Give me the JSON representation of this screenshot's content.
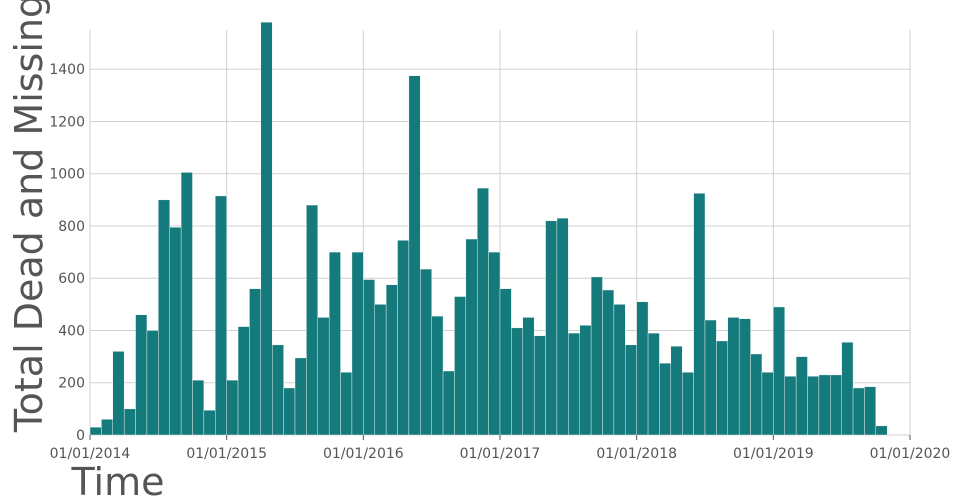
{
  "chart_data": {
    "type": "bar",
    "xlabel": "Time",
    "ylabel": "Total Dead and Missing",
    "ylim": [
      0,
      1550
    ],
    "y_ticks": [
      {
        "value": 0,
        "label": "0"
      },
      {
        "value": 200,
        "label": "200"
      },
      {
        "value": 400,
        "label": "400"
      },
      {
        "value": 600,
        "label": "600"
      },
      {
        "value": 800,
        "label": "800"
      },
      {
        "value": 1000,
        "label": "1000"
      },
      {
        "value": 1200,
        "label": "1200"
      },
      {
        "value": 1400,
        "label": "1400"
      }
    ],
    "x_ticks": [
      {
        "date": "2014-01-01",
        "label": "01/01/2014"
      },
      {
        "date": "2015-01-01",
        "label": "01/01/2015"
      },
      {
        "date": "2016-01-01",
        "label": "01/01/2016"
      },
      {
        "date": "2017-01-01",
        "label": "01/01/2017"
      },
      {
        "date": "2018-01-01",
        "label": "01/01/2018"
      },
      {
        "date": "2019-01-01",
        "label": "01/01/2019"
      },
      {
        "date": "2020-01-01",
        "label": "01/01/2020"
      }
    ],
    "bar_color": "#157a7c",
    "grid": true,
    "legend": "none",
    "x": [
      "2014-01",
      "2014-02",
      "2014-03",
      "2014-04",
      "2014-05",
      "2014-06",
      "2014-07",
      "2014-08",
      "2014-09",
      "2014-10",
      "2014-11",
      "2014-12",
      "2015-01",
      "2015-02",
      "2015-03",
      "2015-04",
      "2015-05",
      "2015-06",
      "2015-07",
      "2015-08",
      "2015-09",
      "2015-10",
      "2015-11",
      "2015-12",
      "2016-01",
      "2016-02",
      "2016-03",
      "2016-04",
      "2016-05",
      "2016-06",
      "2016-07",
      "2016-08",
      "2016-09",
      "2016-10",
      "2016-11",
      "2016-12",
      "2017-01",
      "2017-02",
      "2017-03",
      "2017-04",
      "2017-05",
      "2017-06",
      "2017-07",
      "2017-08",
      "2017-09",
      "2017-10",
      "2017-11",
      "2017-12",
      "2018-01",
      "2018-02",
      "2018-03",
      "2018-04",
      "2018-05",
      "2018-06",
      "2018-07",
      "2018-08",
      "2018-09",
      "2018-10",
      "2018-11",
      "2018-12",
      "2019-01",
      "2019-02",
      "2019-03",
      "2019-04",
      "2019-05",
      "2019-06",
      "2019-07",
      "2019-08",
      "2019-09",
      "2019-10",
      "2019-11",
      "2019-12"
    ],
    "values": [
      30,
      60,
      320,
      100,
      460,
      400,
      900,
      795,
      1005,
      210,
      95,
      915,
      210,
      415,
      560,
      1580,
      345,
      180,
      295,
      880,
      450,
      700,
      240,
      700,
      595,
      500,
      575,
      745,
      1375,
      635,
      455,
      245,
      530,
      750,
      945,
      700,
      560,
      410,
      450,
      380,
      820,
      830,
      390,
      420,
      605,
      555,
      500,
      345,
      510,
      390,
      275,
      340,
      240,
      925,
      440,
      360,
      450,
      445,
      310,
      240,
      490,
      225,
      300,
      225,
      230,
      230,
      355,
      180,
      185,
      35,
      0,
      0
    ]
  }
}
